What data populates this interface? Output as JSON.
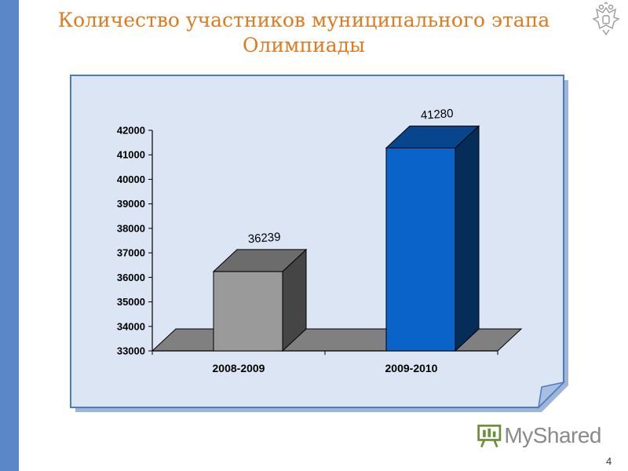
{
  "slide": {
    "title_line1": "Количество участников муниципального этапа",
    "title_line2": "Олимпиады",
    "page_number": "4",
    "emblem": "russian-coat-of-arms-icon",
    "watermark": "MyShared",
    "colors": {
      "title": "#e07a1f",
      "left_bar": "#5b86c8",
      "panel": "#dce5f3",
      "panel_border": "#4a7cc4"
    }
  },
  "chart_data": {
    "type": "bar",
    "title": "",
    "xlabel": "",
    "ylabel": "",
    "categories": [
      "2008-2009",
      "2009-2010"
    ],
    "values": [
      36239,
      41280
    ],
    "data_labels": [
      "36239",
      "41280"
    ],
    "ylim": [
      33000,
      42000
    ],
    "yticks": [
      33000,
      34000,
      35000,
      36000,
      37000,
      38000,
      39000,
      40000,
      41000,
      42000
    ],
    "bar_style": "3d",
    "bar_colors": [
      "#9a9a9a",
      "#0a63c9"
    ],
    "grid": false,
    "legend": "none"
  }
}
